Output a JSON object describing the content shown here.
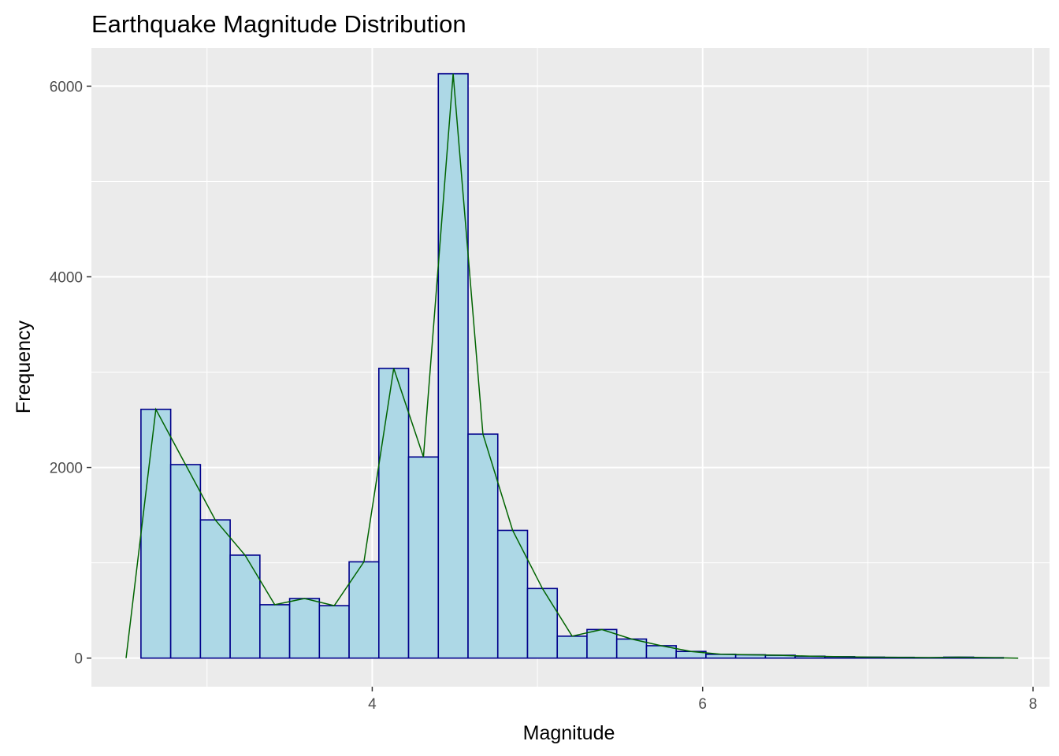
{
  "chart_data": {
    "type": "bar",
    "title": "Earthquake Magnitude Distribution",
    "xlabel": "Magnitude",
    "ylabel": "Frequency",
    "xlim": [
      2.3,
      8.1
    ],
    "ylim": [
      -300,
      6400
    ],
    "x_ticks": [
      {
        "value": 4,
        "label": "4"
      },
      {
        "value": 6,
        "label": "6"
      },
      {
        "value": 8,
        "label": "8"
      }
    ],
    "y_ticks": [
      {
        "value": 0,
        "label": "0"
      },
      {
        "value": 2000,
        "label": "2000"
      },
      {
        "value": 4000,
        "label": "4000"
      },
      {
        "value": 6000,
        "label": "6000"
      }
    ],
    "x_minor_gridlines": [
      3,
      5,
      7
    ],
    "y_minor_gridlines": [
      1000,
      3000,
      5000
    ],
    "bin_width": 0.18,
    "bins": [
      {
        "x": 2.69,
        "count": 2610
      },
      {
        "x": 2.87,
        "count": 2030
      },
      {
        "x": 3.05,
        "count": 1450
      },
      {
        "x": 3.23,
        "count": 1080
      },
      {
        "x": 3.41,
        "count": 560
      },
      {
        "x": 3.59,
        "count": 625
      },
      {
        "x": 3.77,
        "count": 550
      },
      {
        "x": 3.95,
        "count": 1010
      },
      {
        "x": 4.13,
        "count": 3040
      },
      {
        "x": 4.31,
        "count": 2110
      },
      {
        "x": 4.49,
        "count": 6130
      },
      {
        "x": 4.67,
        "count": 2350
      },
      {
        "x": 4.85,
        "count": 1340
      },
      {
        "x": 5.03,
        "count": 730
      },
      {
        "x": 5.21,
        "count": 230
      },
      {
        "x": 5.39,
        "count": 300
      },
      {
        "x": 5.57,
        "count": 200
      },
      {
        "x": 5.75,
        "count": 130
      },
      {
        "x": 5.93,
        "count": 70
      },
      {
        "x": 6.11,
        "count": 40
      },
      {
        "x": 6.29,
        "count": 35
      },
      {
        "x": 6.47,
        "count": 30
      },
      {
        "x": 6.65,
        "count": 20
      },
      {
        "x": 6.83,
        "count": 15
      },
      {
        "x": 7.01,
        "count": 10
      },
      {
        "x": 7.19,
        "count": 8
      },
      {
        "x": 7.37,
        "count": 5
      },
      {
        "x": 7.55,
        "count": 10
      },
      {
        "x": 7.73,
        "count": 5
      }
    ],
    "polygon_endpoints": {
      "start": {
        "x": 2.51,
        "count": 0
      },
      "end": {
        "x": 7.91,
        "count": 0
      }
    },
    "colors": {
      "panel_background": "#EBEBEB",
      "grid": "#FFFFFF",
      "bar_fill": "#ADD8E6",
      "bar_outline": "#00008B",
      "frequency_polygon": "#006400"
    }
  }
}
